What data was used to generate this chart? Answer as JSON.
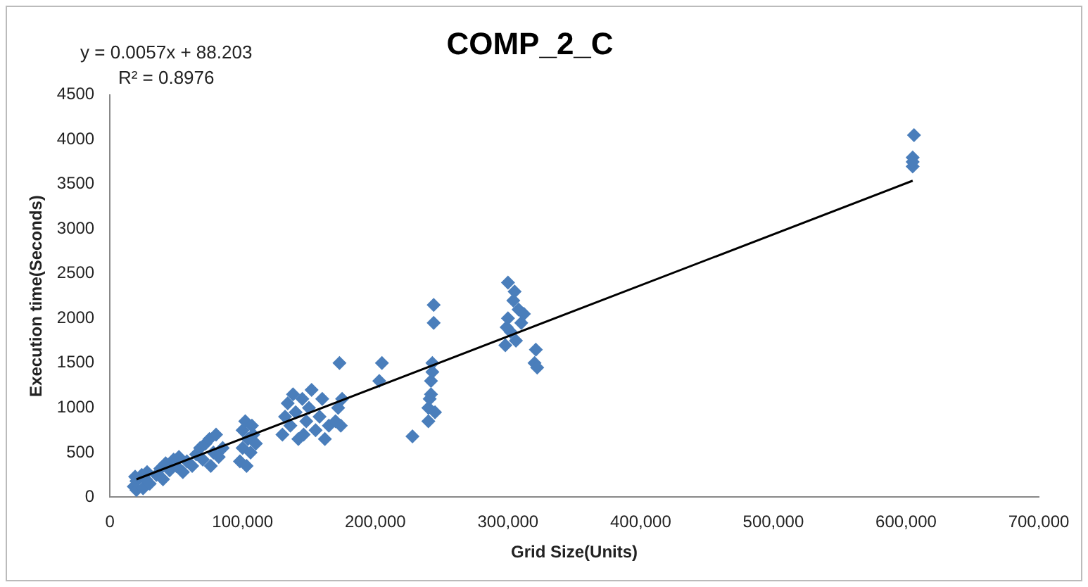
{
  "chart_data": {
    "type": "scatter",
    "title": "COMP_2_C",
    "xlabel": "Grid Size(Units)",
    "ylabel": "Execution time(Seconds)",
    "xlim": [
      0,
      700000
    ],
    "xticks": [
      {
        "value": 0,
        "label": "0"
      },
      {
        "value": 100000,
        "label": "100,000"
      },
      {
        "value": 200000,
        "label": "200,000"
      },
      {
        "value": 300000,
        "label": "300,000"
      },
      {
        "value": 400000,
        "label": "400,000"
      },
      {
        "value": 500000,
        "label": "500,000"
      },
      {
        "value": 600000,
        "label": "600,000"
      },
      {
        "value": 700000,
        "label": "700,000"
      }
    ],
    "ylim": [
      0,
      4500
    ],
    "yticks": [
      0,
      500,
      1000,
      1500,
      2000,
      2500,
      3000,
      3500,
      4000,
      4500
    ],
    "grid": false,
    "legend": false,
    "marker": "diamond",
    "annotations": [
      "y = 0.0057x + 88.203",
      "R² = 0.8976"
    ],
    "series": [
      {
        "type": "scatter",
        "color": "#4a7ebb",
        "x": [
          18000,
          20000,
          20000,
          24000,
          25000,
          27000,
          28000,
          30000,
          19000,
          35000,
          38000,
          40000,
          42000,
          45000,
          48000,
          50000,
          52000,
          55000,
          58000,
          62000,
          65000,
          68000,
          70000,
          72000,
          75000,
          78000,
          80000,
          82000,
          85000,
          76000,
          98000,
          100000,
          100000,
          102000,
          104000,
          106000,
          108000,
          110000,
          103000,
          107000,
          130000,
          132000,
          134000,
          136000,
          138000,
          140000,
          142000,
          145000,
          148000,
          150000,
          152000,
          155000,
          158000,
          160000,
          162000,
          165000,
          146000,
          170000,
          172000,
          173000,
          175000,
          174000,
          203000,
          205000,
          228000,
          240000,
          240000,
          242000,
          242000,
          243000,
          243000,
          244000,
          244000,
          245000,
          241000,
          298000,
          300000,
          300000,
          302000,
          304000,
          306000,
          308000,
          310000,
          312000,
          305000,
          299000,
          320000,
          321000,
          322000,
          605000,
          605000,
          606000,
          605000
        ],
        "values": [
          120,
          80,
          180,
          250,
          100,
          200,
          280,
          150,
          230,
          250,
          320,
          200,
          380,
          300,
          420,
          350,
          450,
          280,
          400,
          350,
          480,
          550,
          420,
          600,
          650,
          500,
          700,
          450,
          550,
          350,
          400,
          550,
          750,
          850,
          650,
          500,
          700,
          600,
          350,
          800,
          700,
          900,
          1050,
          800,
          1150,
          950,
          650,
          1100,
          850,
          1000,
          1200,
          750,
          900,
          1100,
          650,
          800,
          700,
          850,
          1000,
          1500,
          1100,
          800,
          1300,
          1500,
          680,
          850,
          1000,
          1150,
          1300,
          1400,
          1500,
          1950,
          2150,
          950,
          1100,
          1700,
          2400,
          2000,
          1850,
          2200,
          1750,
          2100,
          1950,
          2050,
          2300,
          1900,
          1500,
          1650,
          1450,
          3700,
          3800,
          4050,
          3750
        ]
      },
      {
        "type": "line",
        "color": "#000000",
        "marker": "none",
        "x": [
          20000,
          605000
        ],
        "values": [
          200,
          3540
        ]
      }
    ]
  }
}
